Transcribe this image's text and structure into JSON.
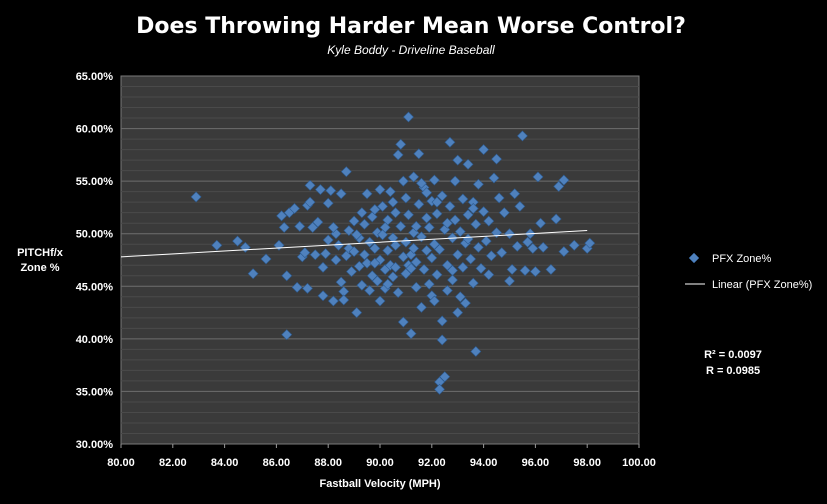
{
  "chart_data": {
    "type": "scatter",
    "title": "Does Throwing Harder Mean Worse Control?",
    "subtitle": "Kyle Boddy - Driveline Baseball",
    "xlabel": "Fastball Velocity (MPH)",
    "ylabel_line1": "PITCHf/x",
    "ylabel_line2": "Zone %",
    "xlim": [
      80,
      100
    ],
    "ylim": [
      30,
      65
    ],
    "x_ticks": [
      "80.00",
      "82.00",
      "84.00",
      "86.00",
      "88.00",
      "90.00",
      "92.00",
      "94.00",
      "96.00",
      "98.00",
      "100.00"
    ],
    "y_ticks": [
      "30.00%",
      "35.00%",
      "40.00%",
      "45.00%",
      "50.00%",
      "55.00%",
      "60.00%",
      "65.00%"
    ],
    "grid": true,
    "legend_position": "right",
    "series": [
      {
        "name": "PFX Zone%",
        "color": "#4f81bd",
        "marker": "diamond",
        "points": [
          [
            82.9,
            53.5
          ],
          [
            83.7,
            48.9
          ],
          [
            84.5,
            49.3
          ],
          [
            84.8,
            48.7
          ],
          [
            85.1,
            46.2
          ],
          [
            85.6,
            47.6
          ],
          [
            86.1,
            48.9
          ],
          [
            86.2,
            51.7
          ],
          [
            86.3,
            50.6
          ],
          [
            86.4,
            46.0
          ],
          [
            86.4,
            40.4
          ],
          [
            86.5,
            52.0
          ],
          [
            86.7,
            52.4
          ],
          [
            86.8,
            44.9
          ],
          [
            86.9,
            50.7
          ],
          [
            87.0,
            47.8
          ],
          [
            87.2,
            44.8
          ],
          [
            87.2,
            52.7
          ],
          [
            87.3,
            53.0
          ],
          [
            87.3,
            54.6
          ],
          [
            87.4,
            50.6
          ],
          [
            87.5,
            48.0
          ],
          [
            87.6,
            51.1
          ],
          [
            87.7,
            54.2
          ],
          [
            87.8,
            44.1
          ],
          [
            87.8,
            46.8
          ],
          [
            87.9,
            48.1
          ],
          [
            88.0,
            49.4
          ],
          [
            88.0,
            52.9
          ],
          [
            88.1,
            54.1
          ],
          [
            88.2,
            43.6
          ],
          [
            88.3,
            47.5
          ],
          [
            88.3,
            50.0
          ],
          [
            88.4,
            48.9
          ],
          [
            88.5,
            53.8
          ],
          [
            88.5,
            45.4
          ],
          [
            88.6,
            44.5
          ],
          [
            88.6,
            43.7
          ],
          [
            88.7,
            55.9
          ],
          [
            88.7,
            47.9
          ],
          [
            88.8,
            48.6
          ],
          [
            88.8,
            50.3
          ],
          [
            88.9,
            46.4
          ],
          [
            89.0,
            51.2
          ],
          [
            89.0,
            48.3
          ],
          [
            89.1,
            42.5
          ],
          [
            89.2,
            46.9
          ],
          [
            89.2,
            49.6
          ],
          [
            89.3,
            52.0
          ],
          [
            89.3,
            45.1
          ],
          [
            89.4,
            48.0
          ],
          [
            89.4,
            50.9
          ],
          [
            89.5,
            53.8
          ],
          [
            89.5,
            47.2
          ],
          [
            89.6,
            44.6
          ],
          [
            89.6,
            49.2
          ],
          [
            89.7,
            51.6
          ],
          [
            89.7,
            46.0
          ],
          [
            89.8,
            48.6
          ],
          [
            89.8,
            52.3
          ],
          [
            89.9,
            45.5
          ],
          [
            89.9,
            50.1
          ],
          [
            90.0,
            54.2
          ],
          [
            90.0,
            43.6
          ],
          [
            90.0,
            47.5
          ],
          [
            90.1,
            49.9
          ],
          [
            90.1,
            52.6
          ],
          [
            90.2,
            46.6
          ],
          [
            90.2,
            44.8
          ],
          [
            90.3,
            48.4
          ],
          [
            90.3,
            51.3
          ],
          [
            90.4,
            54.0
          ],
          [
            90.4,
            47.0
          ],
          [
            90.5,
            49.6
          ],
          [
            90.5,
            45.9
          ],
          [
            90.6,
            52.0
          ],
          [
            90.6,
            48.9
          ],
          [
            90.7,
            44.4
          ],
          [
            90.7,
            57.5
          ],
          [
            90.8,
            58.5
          ],
          [
            90.8,
            50.7
          ],
          [
            90.9,
            47.8
          ],
          [
            90.9,
            41.6
          ],
          [
            91.0,
            53.4
          ],
          [
            91.0,
            49.2
          ],
          [
            91.0,
            46.2
          ],
          [
            91.1,
            61.1
          ],
          [
            91.1,
            51.8
          ],
          [
            91.2,
            48.0
          ],
          [
            91.2,
            40.5
          ],
          [
            91.3,
            55.4
          ],
          [
            91.3,
            50.1
          ],
          [
            91.4,
            44.9
          ],
          [
            91.4,
            47.3
          ],
          [
            91.5,
            52.8
          ],
          [
            91.5,
            57.6
          ],
          [
            91.6,
            49.7
          ],
          [
            91.6,
            43.0
          ],
          [
            91.7,
            54.4
          ],
          [
            91.7,
            46.6
          ],
          [
            91.8,
            51.5
          ],
          [
            91.8,
            48.4
          ],
          [
            91.9,
            45.2
          ],
          [
            91.9,
            50.6
          ],
          [
            92.0,
            53.1
          ],
          [
            92.0,
            47.7
          ],
          [
            92.0,
            44.1
          ],
          [
            92.1,
            49.0
          ],
          [
            92.1,
            55.1
          ],
          [
            92.2,
            51.9
          ],
          [
            92.2,
            46.1
          ],
          [
            92.3,
            35.9
          ],
          [
            92.3,
            35.2
          ],
          [
            92.3,
            48.5
          ],
          [
            92.4,
            41.7
          ],
          [
            92.4,
            53.6
          ],
          [
            92.4,
            39.9
          ],
          [
            92.5,
            36.4
          ],
          [
            92.5,
            50.4
          ],
          [
            92.6,
            47.0
          ],
          [
            92.6,
            44.6
          ],
          [
            92.7,
            52.6
          ],
          [
            92.7,
            58.7
          ],
          [
            92.8,
            49.6
          ],
          [
            92.8,
            46.5
          ],
          [
            92.9,
            51.3
          ],
          [
            92.9,
            55.0
          ],
          [
            93.0,
            48.0
          ],
          [
            93.0,
            57.0
          ],
          [
            93.1,
            44.0
          ],
          [
            93.1,
            50.2
          ],
          [
            93.2,
            53.3
          ],
          [
            93.2,
            46.8
          ],
          [
            93.3,
            43.4
          ],
          [
            93.3,
            49.1
          ],
          [
            93.4,
            56.6
          ],
          [
            93.4,
            51.8
          ],
          [
            93.5,
            47.6
          ],
          [
            93.6,
            45.3
          ],
          [
            93.6,
            53.0
          ],
          [
            93.7,
            38.8
          ],
          [
            93.7,
            50.9
          ],
          [
            93.8,
            54.7
          ],
          [
            93.8,
            48.7
          ],
          [
            93.9,
            46.7
          ],
          [
            94.0,
            58.0
          ],
          [
            94.0,
            52.1
          ],
          [
            94.1,
            49.3
          ],
          [
            94.2,
            51.2
          ],
          [
            94.3,
            47.9
          ],
          [
            94.4,
            55.3
          ],
          [
            94.5,
            57.1
          ],
          [
            94.5,
            50.1
          ],
          [
            94.6,
            53.4
          ],
          [
            94.7,
            48.2
          ],
          [
            94.8,
            52.0
          ],
          [
            95.0,
            45.5
          ],
          [
            95.0,
            50.0
          ],
          [
            95.1,
            46.6
          ],
          [
            95.2,
            53.8
          ],
          [
            95.3,
            48.8
          ],
          [
            95.4,
            52.6
          ],
          [
            95.5,
            59.3
          ],
          [
            95.6,
            46.5
          ],
          [
            95.8,
            50.0
          ],
          [
            95.9,
            48.6
          ],
          [
            96.0,
            46.4
          ],
          [
            96.1,
            55.4
          ],
          [
            96.2,
            51.0
          ],
          [
            96.3,
            48.7
          ],
          [
            96.6,
            46.6
          ],
          [
            96.8,
            51.4
          ],
          [
            96.9,
            54.5
          ],
          [
            97.1,
            55.1
          ],
          [
            97.1,
            48.3
          ],
          [
            97.5,
            48.9
          ],
          [
            98.0,
            48.6
          ],
          [
            98.1,
            49.1
          ],
          [
            90.2,
            50.6
          ],
          [
            90.5,
            53.0
          ],
          [
            91.1,
            47.0
          ],
          [
            91.4,
            50.7
          ],
          [
            91.8,
            53.9
          ],
          [
            92.1,
            43.6
          ],
          [
            92.6,
            51.0
          ],
          [
            93.4,
            49.5
          ],
          [
            91.2,
            46.7
          ],
          [
            90.9,
            55.0
          ],
          [
            89.8,
            47.2
          ],
          [
            92.2,
            53.0
          ],
          [
            93.6,
            52.4
          ],
          [
            92.8,
            45.6
          ],
          [
            91.3,
            48.6
          ],
          [
            90.6,
            46.8
          ],
          [
            89.1,
            49.9
          ],
          [
            88.2,
            50.6
          ],
          [
            87.1,
            48.2
          ],
          [
            94.2,
            46.1
          ],
          [
            95.7,
            49.2
          ],
          [
            93.0,
            42.5
          ],
          [
            91.6,
            54.8
          ],
          [
            90.3,
            45.2
          ]
        ]
      },
      {
        "name": "Linear (PFX Zone%)",
        "color": "#ffffff",
        "type": "trendline",
        "x_range": [
          80,
          98
        ],
        "y_range": [
          47.8,
          50.3
        ]
      }
    ],
    "annotations": [
      "R² = 0.0097",
      "R = 0.0985"
    ]
  }
}
